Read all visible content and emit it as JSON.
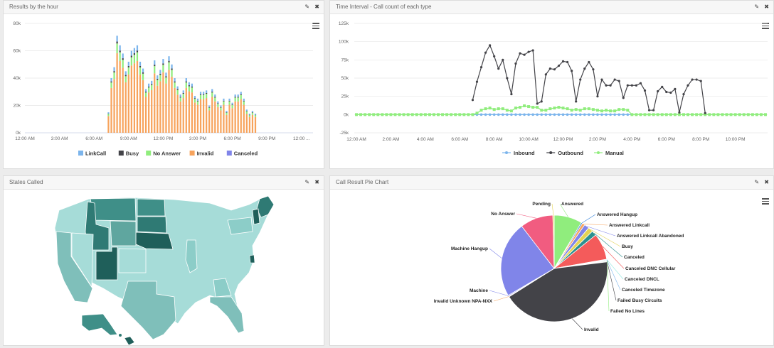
{
  "panels": {
    "hourly": {
      "title": "Results by the hour",
      "edit_icon": "pencil-icon",
      "close_icon": "close-icon"
    },
    "interval": {
      "title": "Time Interval - Call count of each type",
      "edit_icon": "pencil-icon",
      "close_icon": "close-icon"
    },
    "states": {
      "title": "States Called",
      "edit_icon": "pencil-icon",
      "close_icon": "close-icon"
    },
    "pie": {
      "title": "Call Result Pie Chart",
      "edit_icon": "pencil-icon",
      "close_icon": "close-icon"
    }
  },
  "tool_glyphs": {
    "edit": "✎",
    "close": "✖"
  },
  "chart_data": [
    {
      "id": "hourly",
      "type": "bar",
      "stacked": true,
      "title": "Results by the hour",
      "ylim": [
        0,
        80000
      ],
      "y_ticks": [
        0,
        20000,
        40000,
        60000,
        80000
      ],
      "y_tick_labels": [
        "0k",
        "20k",
        "40k",
        "60k",
        "80k"
      ],
      "x_tick_labels": [
        "12:00 AM",
        "3:00 AM",
        "6:00 AM",
        "9:00 AM",
        "12:00 PM",
        "3:00 PM",
        "6:00 PM",
        "9:00 PM",
        "12:00 ..."
      ],
      "x_tick_index": [
        0,
        12,
        24,
        36,
        48,
        60,
        72,
        84,
        96
      ],
      "bar_start_index": 29,
      "bar_slots": 100,
      "legend": [
        "LinkCall",
        "Busy",
        "No Answer",
        "Invalid",
        "Canceled"
      ],
      "colors": {
        "LinkCall": "#7cb5ec",
        "Busy": "#434348",
        "No Answer": "#90ed7d",
        "Invalid": "#f7a35c",
        "Canceled": "#8085e9"
      },
      "totals": [
        15000,
        40000,
        48000,
        71000,
        64000,
        58000,
        45000,
        52000,
        60000,
        62000,
        64000,
        52000,
        47000,
        32000,
        36000,
        38000,
        53000,
        42000,
        46000,
        54000,
        44000,
        56000,
        50000,
        40000,
        34000,
        28000,
        31000,
        40000,
        37000,
        36000,
        27000,
        25000,
        30000,
        30000,
        31000,
        20000,
        32000,
        28000,
        23000,
        20000,
        25000,
        16000,
        25000,
        22000,
        28000,
        28000,
        30000,
        25000,
        17000,
        14000,
        16000,
        14000
      ],
      "invalid_share": 0.82,
      "noanswer_share": 0.1,
      "busy_share": 0.02
    },
    {
      "id": "interval",
      "type": "line",
      "title": "Time Interval - Call count of each type",
      "ylim": [
        -25000,
        125000
      ],
      "y_ticks": [
        -25000,
        0,
        25000,
        50000,
        75000,
        100000,
        125000
      ],
      "y_tick_labels": [
        "-25k",
        "0k",
        "25k",
        "50k",
        "75k",
        "100k",
        "125k"
      ],
      "x_tick_labels": [
        "12:00 AM",
        "2:00 AM",
        "4:00 AM",
        "6:00 AM",
        "8:00 AM",
        "10:00 AM",
        "12:00 PM",
        "2:00 PM",
        "4:00 PM",
        "6:00 PM",
        "8:00 PM",
        "10:00 PM"
      ],
      "x_tick_index": [
        0,
        8,
        16,
        24,
        32,
        40,
        48,
        56,
        64,
        72,
        80,
        88
      ],
      "n_points": 96,
      "series": [
        {
          "name": "Inbound",
          "color": "#7cb5ec",
          "values": []
        },
        {
          "name": "Outbound",
          "color": "#434348",
          "start": 27,
          "values": [
            20000,
            45000,
            65000,
            85000,
            95000,
            80000,
            63000,
            75000,
            50000,
            28000,
            70000,
            84000,
            82000,
            86000,
            88000,
            15000,
            18000,
            55000,
            63000,
            62000,
            67000,
            73000,
            72000,
            60000,
            18000,
            48000,
            63000,
            72000,
            62000,
            25000,
            48000,
            40000,
            40000,
            48000,
            46000,
            23000,
            40000,
            40000,
            40000,
            43000,
            33000,
            6000,
            6000,
            32000,
            38000,
            31000,
            30000,
            35000,
            3000,
            28000,
            40000,
            48000,
            48000,
            46000,
            2000
          ]
        },
        {
          "name": "Manual",
          "color": "#90ed7d",
          "bump_start": 28,
          "bump_end": 64,
          "bump_values": [
            2000,
            6000,
            8000,
            9000,
            7000,
            8000,
            8000,
            6000,
            5000,
            9000,
            10000,
            12000,
            11000,
            10000,
            10000,
            6000,
            6000,
            8000,
            9000,
            10000,
            9000,
            8000,
            6000,
            7000,
            6000,
            8000,
            8000,
            7000,
            6000,
            5000,
            6000,
            5000,
            5000,
            7000,
            7000,
            6000
          ]
        }
      ],
      "legend": [
        "Inbound",
        "Outbound",
        "Manual"
      ]
    },
    {
      "id": "pie",
      "type": "pie",
      "title": "Call Result Pie Chart",
      "slices": [
        {
          "label": "Answered",
          "value": 8.5,
          "color": "#90ed7d"
        },
        {
          "label": "Answered Hangup",
          "value": 0.4,
          "color": "#2f7ed8"
        },
        {
          "label": "Answered Linkcall",
          "value": 0.8,
          "color": "#f7a35c"
        },
        {
          "label": "Answered Linkcall Abandoned",
          "value": 1.5,
          "color": "#8085e9"
        },
        {
          "label": "Busy",
          "value": 1.5,
          "color": "#e4d354"
        },
        {
          "label": "Canceled",
          "value": 1.5,
          "color": "#2b908f"
        },
        {
          "label": "Canceled DNC Cellular",
          "value": 8.0,
          "color": "#f45b5b"
        },
        {
          "label": "Canceled DNCL",
          "value": 0.2,
          "color": "#91e8e1"
        },
        {
          "label": "Canceled Timezone",
          "value": 0.2,
          "color": "#7cb5ec"
        },
        {
          "label": "Failed Busy Circuits",
          "value": 0.2,
          "color": "#434348"
        },
        {
          "label": "Failed No Lines",
          "value": 0.2,
          "color": "#90ed7d"
        },
        {
          "label": "Invalid",
          "value": 43.0,
          "color": "#434348"
        },
        {
          "label": "Invalid Unknown NPA-NXX",
          "value": 0.2,
          "color": "#f7a35c"
        },
        {
          "label": "Machine",
          "value": 0.3,
          "color": "#8085e9"
        },
        {
          "label": "Machine Hangup",
          "value": 23.0,
          "color": "#8085e9"
        },
        {
          "label": "No Answer",
          "value": 10.0,
          "color": "#f15c80"
        },
        {
          "label": "Pending",
          "value": 0.4,
          "color": "#e4d354"
        }
      ]
    }
  ],
  "map": {
    "states_label": "US states choropleth"
  }
}
